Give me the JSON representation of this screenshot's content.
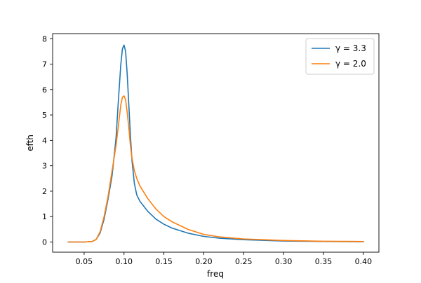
{
  "chart_data": {
    "type": "line",
    "xlabel": "freq",
    "ylabel": "efth",
    "xlim": [
      0.0105,
      0.4195
    ],
    "ylim": [
      -0.4,
      8.2
    ],
    "xticks": [
      0.05,
      0.1,
      0.15,
      0.2,
      0.25,
      0.3,
      0.35,
      0.4
    ],
    "xtick_labels": [
      "0.05",
      "0.10",
      "0.15",
      "0.20",
      "0.25",
      "0.30",
      "0.35",
      "0.40"
    ],
    "yticks": [
      0,
      1,
      2,
      3,
      4,
      5,
      6,
      7,
      8
    ],
    "ytick_labels": [
      "0",
      "1",
      "2",
      "3",
      "4",
      "5",
      "6",
      "7",
      "8"
    ],
    "grid": false,
    "legend_position": "top-right",
    "series": [
      {
        "name": "γ = 3.3",
        "color": "#1f77b4",
        "x": [
          0.03,
          0.05,
          0.06,
          0.065,
          0.07,
          0.075,
          0.08,
          0.085,
          0.09,
          0.093,
          0.096,
          0.098,
          0.1,
          0.102,
          0.104,
          0.106,
          0.108,
          0.11,
          0.113,
          0.116,
          0.12,
          0.13,
          0.14,
          0.15,
          0.16,
          0.18,
          0.2,
          0.22,
          0.25,
          0.3,
          0.35,
          0.4
        ],
        "y": [
          0.0,
          0.0,
          0.02,
          0.1,
          0.35,
          0.9,
          1.7,
          2.6,
          4.1,
          5.6,
          7.0,
          7.6,
          7.75,
          7.5,
          6.6,
          5.4,
          4.2,
          3.2,
          2.3,
          1.85,
          1.6,
          1.2,
          0.9,
          0.7,
          0.55,
          0.35,
          0.22,
          0.15,
          0.09,
          0.04,
          0.02,
          0.01
        ]
      },
      {
        "name": "γ = 2.0",
        "color": "#ff7f0e",
        "x": [
          0.03,
          0.05,
          0.06,
          0.065,
          0.07,
          0.075,
          0.08,
          0.085,
          0.09,
          0.093,
          0.096,
          0.098,
          0.1,
          0.102,
          0.104,
          0.106,
          0.108,
          0.11,
          0.113,
          0.116,
          0.12,
          0.13,
          0.14,
          0.15,
          0.16,
          0.18,
          0.2,
          0.22,
          0.25,
          0.3,
          0.35,
          0.4
        ],
        "y": [
          0.0,
          0.0,
          0.02,
          0.1,
          0.4,
          1.0,
          1.8,
          2.8,
          3.8,
          4.6,
          5.4,
          5.7,
          5.75,
          5.6,
          5.1,
          4.5,
          3.8,
          3.3,
          2.8,
          2.5,
          2.2,
          1.7,
          1.3,
          1.0,
          0.8,
          0.5,
          0.3,
          0.2,
          0.12,
          0.06,
          0.03,
          0.02
        ]
      }
    ]
  }
}
